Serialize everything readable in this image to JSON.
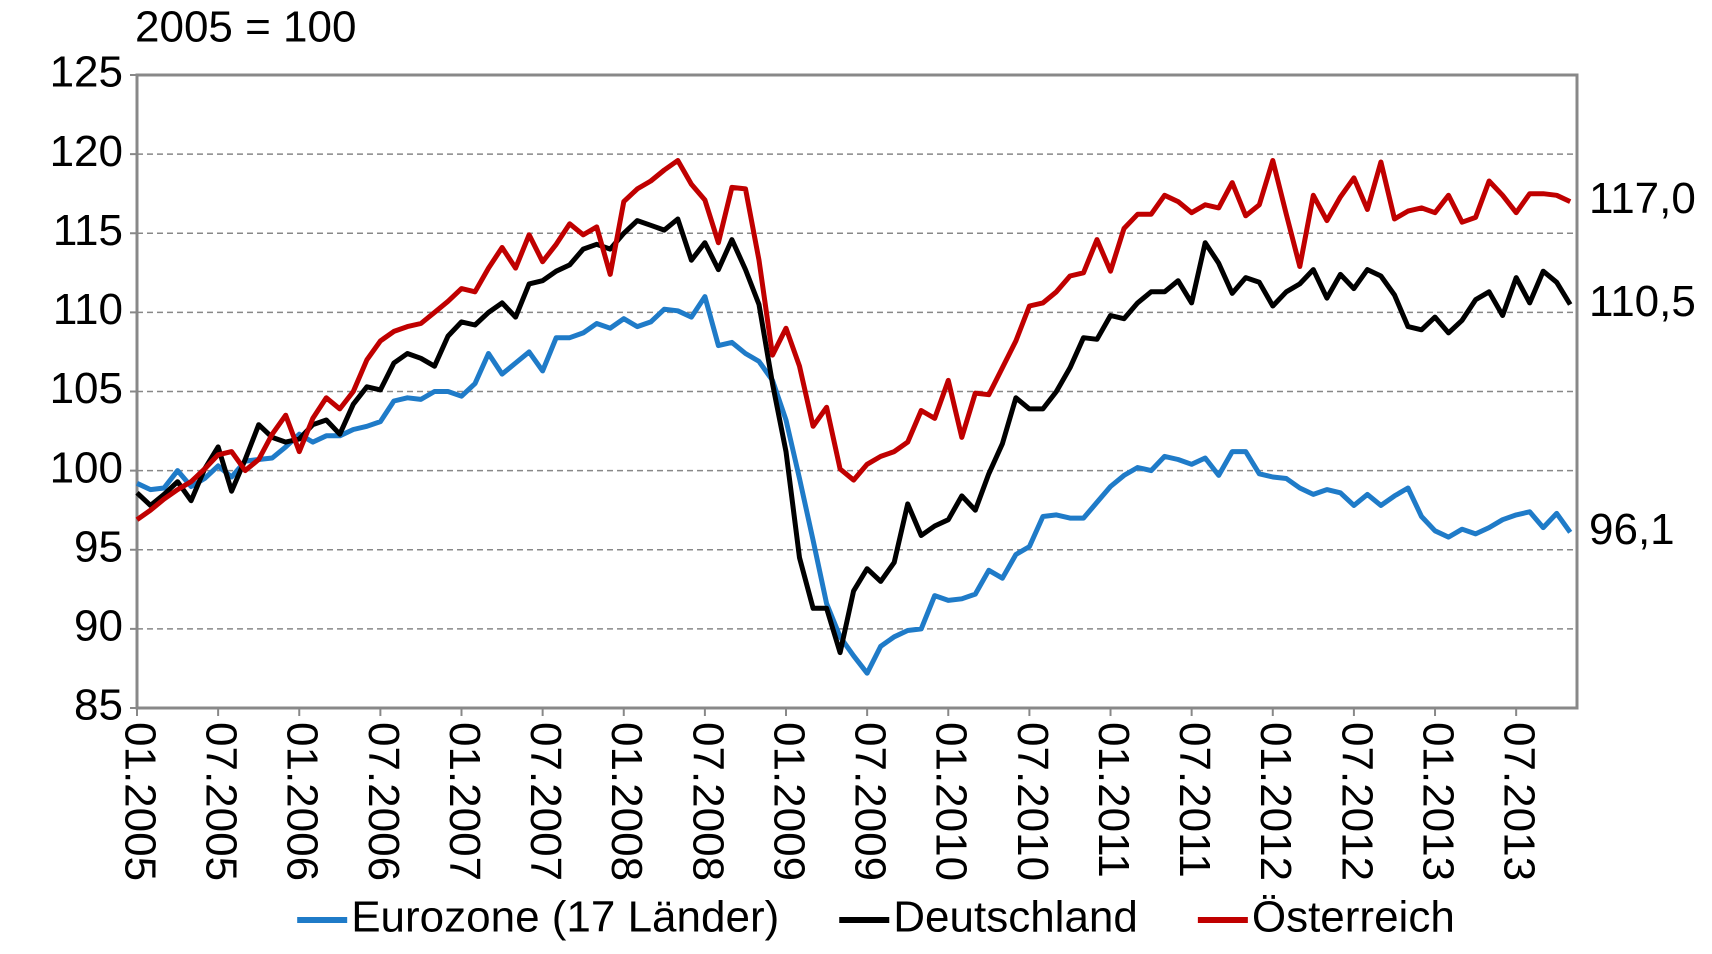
{
  "chart_data": {
    "type": "line",
    "unit_label": "2005 = 100",
    "categories": [
      "01.2005",
      null,
      null,
      null,
      null,
      null,
      "07.2005",
      null,
      null,
      null,
      null,
      null,
      "01.2006",
      null,
      null,
      null,
      null,
      null,
      "07.2006",
      null,
      null,
      null,
      null,
      null,
      "01.2007",
      null,
      null,
      null,
      null,
      null,
      "07.2007",
      null,
      null,
      null,
      null,
      null,
      "01.2008",
      null,
      null,
      null,
      null,
      null,
      "07.2008",
      null,
      null,
      null,
      null,
      null,
      "01.2009",
      null,
      null,
      null,
      null,
      null,
      "07.2009",
      null,
      null,
      null,
      null,
      null,
      "01.2010",
      null,
      null,
      null,
      null,
      null,
      "07.2010",
      null,
      null,
      null,
      null,
      null,
      "01.2011",
      null,
      null,
      null,
      null,
      null,
      "07.2011",
      null,
      null,
      null,
      null,
      null,
      "01.2012",
      null,
      null,
      null,
      null,
      null,
      "07.2012",
      null,
      null,
      null,
      null,
      null,
      "01.2013",
      null,
      null,
      null,
      null,
      null,
      "07.2013",
      null,
      null,
      null,
      null
    ],
    "series": [
      {
        "name": "Eurozone (17 Länder)",
        "color": "#1f7bc8",
        "values": [
          99.2,
          98.8,
          98.9,
          100.0,
          99.0,
          99.5,
          100.3,
          99.6,
          100.6,
          100.7,
          100.8,
          101.5,
          102.3,
          101.8,
          102.2,
          102.2,
          102.6,
          102.8,
          103.1,
          104.4,
          104.6,
          104.5,
          105.0,
          105.0,
          104.7,
          105.5,
          107.4,
          106.1,
          106.8,
          107.5,
          106.3,
          108.4,
          108.4,
          108.7,
          109.3,
          109.0,
          109.6,
          109.1,
          109.4,
          110.2,
          110.1,
          109.7,
          111.0,
          107.9,
          108.1,
          107.4,
          106.9,
          105.7,
          103.2,
          99.5,
          95.6,
          91.6,
          89.5,
          88.3,
          87.2,
          88.9,
          89.5,
          89.9,
          90.0,
          92.1,
          91.8,
          91.9,
          92.2,
          93.7,
          93.2,
          94.7,
          95.2,
          97.1,
          97.2,
          97.0,
          97.0,
          98.0,
          99.0,
          99.7,
          100.2,
          100.0,
          100.9,
          100.7,
          100.4,
          100.8,
          99.7,
          101.2,
          101.2,
          99.8,
          99.6,
          99.5,
          98.9,
          98.5,
          98.8,
          98.6,
          97.8,
          98.5,
          97.8,
          98.4,
          98.9,
          97.1,
          96.2,
          95.8,
          96.3,
          96.0,
          96.4,
          96.9,
          97.2,
          97.4,
          96.4,
          97.3,
          96.1
        ],
        "value_labels": [
          null,
          null,
          null,
          null,
          null,
          null,
          null,
          null,
          null,
          null,
          null,
          null,
          null,
          null,
          null,
          null,
          null,
          null,
          null,
          null,
          null,
          null,
          null,
          null,
          null,
          null,
          null,
          null,
          null,
          null,
          null,
          null,
          null,
          null,
          null,
          null,
          null,
          null,
          null,
          null,
          null,
          null,
          null,
          null,
          null,
          null,
          null,
          null,
          null,
          null,
          null,
          null,
          null,
          null,
          null,
          null,
          null,
          null,
          null,
          null,
          null,
          null,
          null,
          null,
          null,
          null,
          null,
          null,
          null,
          null,
          null,
          null,
          null,
          null,
          null,
          null,
          null,
          null,
          null,
          null,
          null,
          null,
          null,
          null,
          null,
          null,
          null,
          null,
          null,
          null,
          null,
          null,
          null,
          null,
          null,
          null,
          null,
          null,
          null,
          null,
          null,
          null,
          null,
          null,
          null,
          null,
          "96,1"
        ]
      },
      {
        "name": "Deutschland",
        "color": "#000000",
        "values": [
          98.6,
          97.8,
          98.5,
          99.3,
          98.1,
          100.1,
          101.5,
          98.7,
          100.7,
          102.9,
          102.1,
          101.8,
          102.0,
          102.9,
          103.2,
          102.3,
          104.2,
          105.3,
          105.1,
          106.8,
          107.4,
          107.1,
          106.6,
          108.5,
          109.4,
          109.2,
          110.0,
          110.6,
          109.7,
          111.8,
          112.0,
          112.6,
          113.0,
          114.0,
          114.3,
          114.0,
          115.0,
          115.8,
          115.5,
          115.2,
          115.9,
          113.3,
          114.4,
          112.7,
          114.6,
          112.7,
          110.5,
          105.5,
          101.2,
          94.5,
          91.3,
          91.3,
          88.5,
          92.4,
          93.8,
          93.0,
          94.2,
          97.9,
          95.9,
          96.5,
          96.9,
          98.4,
          97.5,
          99.8,
          101.7,
          104.6,
          103.9,
          103.9,
          105.0,
          106.5,
          108.4,
          108.3,
          109.8,
          109.6,
          110.6,
          111.3,
          111.3,
          112.0,
          110.6,
          114.4,
          113.1,
          111.2,
          112.2,
          111.9,
          110.4,
          111.3,
          111.8,
          112.7,
          110.9,
          112.4,
          111.5,
          112.7,
          112.3,
          111.1,
          109.1,
          108.9,
          109.7,
          108.7,
          109.5,
          110.8,
          111.3,
          109.8,
          112.2,
          110.6,
          112.6,
          111.9,
          110.5
        ],
        "value_labels": [
          null,
          null,
          null,
          null,
          null,
          null,
          null,
          null,
          null,
          null,
          null,
          null,
          null,
          null,
          null,
          null,
          null,
          null,
          null,
          null,
          null,
          null,
          null,
          null,
          null,
          null,
          null,
          null,
          null,
          null,
          null,
          null,
          null,
          null,
          null,
          null,
          null,
          null,
          null,
          null,
          null,
          null,
          null,
          null,
          null,
          null,
          null,
          null,
          null,
          null,
          null,
          null,
          null,
          null,
          null,
          null,
          null,
          null,
          null,
          null,
          null,
          null,
          null,
          null,
          null,
          null,
          null,
          null,
          null,
          null,
          null,
          null,
          null,
          null,
          null,
          null,
          null,
          null,
          null,
          null,
          null,
          null,
          null,
          null,
          null,
          null,
          null,
          null,
          null,
          null,
          null,
          null,
          null,
          null,
          null,
          null,
          null,
          null,
          null,
          null,
          null,
          null,
          null,
          null,
          null,
          null,
          "110,5"
        ]
      },
      {
        "name": "Österreich",
        "color": "#c00000",
        "values": [
          96.9,
          97.5,
          98.2,
          98.8,
          99.3,
          100.1,
          101.0,
          101.2,
          100.0,
          100.7,
          102.3,
          103.5,
          101.2,
          103.3,
          104.6,
          103.9,
          105.0,
          107.0,
          108.2,
          108.8,
          109.1,
          109.3,
          110.0,
          110.7,
          111.5,
          111.3,
          112.8,
          114.1,
          112.8,
          114.9,
          113.2,
          114.3,
          115.6,
          114.9,
          115.4,
          112.4,
          117.0,
          117.8,
          118.3,
          119.0,
          119.6,
          118.1,
          117.1,
          114.4,
          117.9,
          117.8,
          113.3,
          107.3,
          109.0,
          106.6,
          102.8,
          104.0,
          100.1,
          99.4,
          100.4,
          100.9,
          101.2,
          101.8,
          103.8,
          103.3,
          105.7,
          102.1,
          104.9,
          104.8,
          106.5,
          108.2,
          110.4,
          110.6,
          111.3,
          112.3,
          112.5,
          114.6,
          112.6,
          115.3,
          116.2,
          116.2,
          117.4,
          117.0,
          116.3,
          116.8,
          116.6,
          118.2,
          116.1,
          116.8,
          119.6,
          116.2,
          112.9,
          117.4,
          115.8,
          117.3,
          118.5,
          116.5,
          119.5,
          115.9,
          116.4,
          116.6,
          116.3,
          117.4,
          115.7,
          116.0,
          118.3,
          117.4,
          116.3,
          117.5,
          117.5,
          117.4,
          117.0
        ],
        "value_labels": [
          null,
          null,
          null,
          null,
          null,
          null,
          null,
          null,
          null,
          null,
          null,
          null,
          null,
          null,
          null,
          null,
          null,
          null,
          null,
          null,
          null,
          null,
          null,
          null,
          null,
          null,
          null,
          null,
          null,
          null,
          null,
          null,
          null,
          null,
          null,
          null,
          null,
          null,
          null,
          null,
          null,
          null,
          null,
          null,
          null,
          null,
          null,
          null,
          null,
          null,
          null,
          null,
          null,
          null,
          null,
          null,
          null,
          null,
          null,
          null,
          null,
          null,
          null,
          null,
          null,
          null,
          null,
          null,
          null,
          null,
          null,
          null,
          null,
          null,
          null,
          null,
          null,
          null,
          null,
          null,
          null,
          null,
          null,
          null,
          null,
          null,
          null,
          null,
          null,
          null,
          null,
          null,
          null,
          null,
          null,
          null,
          null,
          null,
          null,
          null,
          null,
          null,
          null,
          null,
          null,
          null,
          "117,0"
        ]
      }
    ],
    "ylim": [
      85,
      125
    ],
    "yticks": [
      85,
      90,
      95,
      100,
      105,
      110,
      115,
      120,
      125
    ],
    "grid": true,
    "legend": "bottom"
  }
}
